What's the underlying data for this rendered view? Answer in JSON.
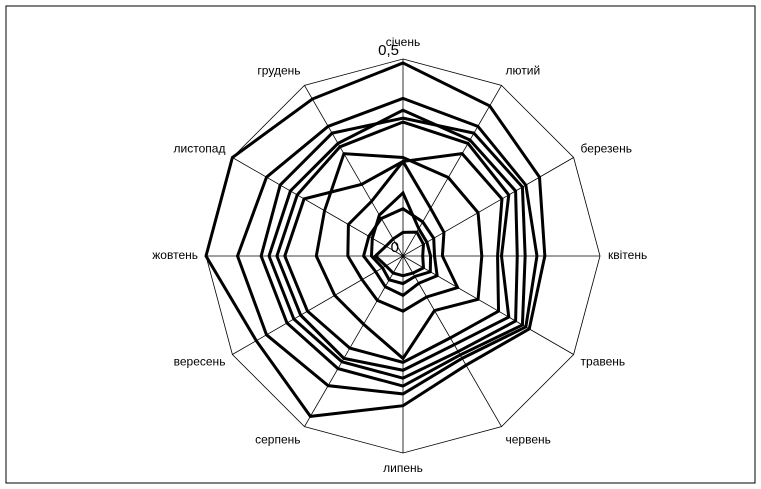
{
  "chart_data": {
    "type": "radar",
    "categories": [
      "січень",
      "лютий",
      "березень",
      "квітень",
      "травень",
      "червень",
      "липень",
      "серпень",
      "вересень",
      "жовтень",
      "листопад",
      "грудень"
    ],
    "rlim": [
      0,
      0.5
    ],
    "rticks": [
      0,
      {
        "value": 0.5,
        "label": "0,5"
      }
    ],
    "color": "#000000",
    "series": [
      {
        "values": [
          0.49,
          0.44,
          0.4,
          0.36,
          0.37,
          0.32,
          0.38,
          0.47,
          0.43,
          0.5,
          0.5,
          0.46
        ]
      },
      {
        "values": [
          0.4,
          0.38,
          0.36,
          0.34,
          0.36,
          0.3,
          0.35,
          0.38,
          0.4,
          0.42,
          0.4,
          0.38
        ]
      },
      {
        "values": [
          0.35,
          0.36,
          0.35,
          0.31,
          0.35,
          0.29,
          0.33,
          0.33,
          0.34,
          0.36,
          0.36,
          0.36
        ]
      },
      {
        "values": [
          0.37,
          0.34,
          0.33,
          0.29,
          0.33,
          0.28,
          0.31,
          0.31,
          0.32,
          0.34,
          0.33,
          0.33
        ]
      },
      {
        "values": [
          0.34,
          0.33,
          0.31,
          0.25,
          0.31,
          0.26,
          0.29,
          0.3,
          0.3,
          0.32,
          0.31,
          0.32
        ]
      },
      {
        "values": [
          0.24,
          0.3,
          0.29,
          0.24,
          0.28,
          0.24,
          0.27,
          0.27,
          0.28,
          0.3,
          0.29,
          0.21
        ]
      },
      {
        "values": [
          0.25,
          0.23,
          0.22,
          0.2,
          0.22,
          0.16,
          0.26,
          0.2,
          0.2,
          0.22,
          0.23,
          0.3
        ]
      },
      {
        "values": [
          0.24,
          0.14,
          0.12,
          0.1,
          0.16,
          0.12,
          0.14,
          0.13,
          0.12,
          0.14,
          0.16,
          0.16
        ]
      },
      {
        "values": [
          0.12,
          0.1,
          0.09,
          0.08,
          0.1,
          0.08,
          0.1,
          0.09,
          0.08,
          0.1,
          0.1,
          0.11
        ]
      },
      {
        "values": [
          0.16,
          0.08,
          0.07,
          0.07,
          0.08,
          0.06,
          0.07,
          0.07,
          0.06,
          0.08,
          0.09,
          0.12
        ]
      },
      {
        "values": [
          0.06,
          0.07,
          0.06,
          0.05,
          0.06,
          0.05,
          0.05,
          0.05,
          0.05,
          0.07,
          0.05,
          0.05
        ]
      }
    ]
  }
}
